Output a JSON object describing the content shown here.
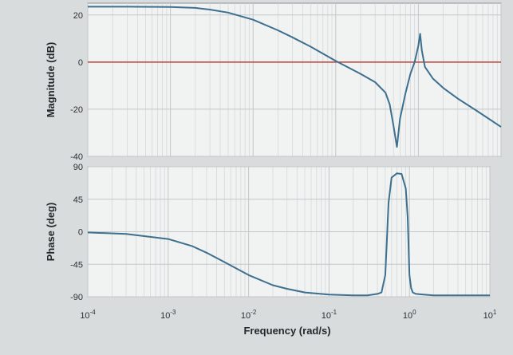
{
  "chart_data": [
    {
      "type": "line",
      "title": "",
      "xlabel": "",
      "ylabel": "Magnitude (dB)",
      "xscale": "log",
      "xlim": [
        0.0001,
        10
      ],
      "ylim": [
        -40,
        25
      ],
      "grid": true,
      "yticks": [
        20,
        0,
        -20,
        -40
      ],
      "ytick_labels": [
        "20",
        "0",
        "-20",
        "-40"
      ],
      "reference_line": {
        "y": 0,
        "color": "#b8413a"
      },
      "series": [
        {
          "color": "#3d6f8e",
          "x": [
            0.0001,
            0.0003,
            0.001,
            0.002,
            0.003,
            0.005,
            0.01,
            0.02,
            0.03,
            0.05,
            0.1,
            0.2,
            0.3,
            0.4,
            0.45,
            0.5,
            0.55,
            0.6,
            0.7,
            0.8,
            0.9,
            1.0,
            1.05,
            1.1,
            1.2,
            1.5,
            2,
            3,
            5,
            10
          ],
          "y": [
            23.5,
            23.5,
            23.4,
            23,
            22.3,
            21,
            18,
            13.5,
            10.5,
            6.5,
            0.5,
            -5,
            -8.5,
            -13,
            -18,
            -27,
            -36,
            -24,
            -13,
            -5,
            0,
            7,
            12,
            5,
            -2,
            -7,
            -11,
            -15.5,
            -20.5,
            -27.5
          ]
        }
      ]
    },
    {
      "type": "line",
      "title": "",
      "xlabel": "Frequency (rad/s)",
      "ylabel": "Phase (deg)",
      "xscale": "log",
      "xlim": [
        0.0001,
        10
      ],
      "ylim": [
        -90,
        90
      ],
      "grid": true,
      "yticks": [
        90,
        45,
        0,
        -45,
        -90
      ],
      "ytick_labels": [
        "90",
        "45",
        "0",
        "-45",
        "-90"
      ],
      "xticks": [
        0.0001,
        0.001,
        0.01,
        0.1,
        1,
        10
      ],
      "xtick_labels": [
        {
          "base": "10",
          "exp": "-4"
        },
        {
          "base": "10",
          "exp": "-3"
        },
        {
          "base": "10",
          "exp": "-2"
        },
        {
          "base": "10",
          "exp": "-1"
        },
        {
          "base": "10",
          "exp": "0"
        },
        {
          "base": "10",
          "exp": "1"
        }
      ],
      "series": [
        {
          "color": "#3d6f8e",
          "x": [
            0.0001,
            0.0003,
            0.001,
            0.002,
            0.003,
            0.005,
            0.01,
            0.02,
            0.03,
            0.05,
            0.1,
            0.2,
            0.3,
            0.4,
            0.45,
            0.5,
            0.52,
            0.55,
            0.6,
            0.7,
            0.8,
            0.9,
            0.95,
            1.0,
            1.05,
            1.1,
            1.2,
            1.5,
            2,
            3,
            5,
            10
          ],
          "y": [
            -1,
            -3,
            -10,
            -20,
            -29,
            -42,
            -60,
            -74,
            -79,
            -84,
            -87,
            -88,
            -88,
            -86,
            -84,
            -60,
            -20,
            40,
            75,
            81,
            80,
            60,
            20,
            -60,
            -78,
            -84,
            -86,
            -87,
            -88,
            -88,
            -88,
            -88
          ]
        }
      ]
    }
  ]
}
